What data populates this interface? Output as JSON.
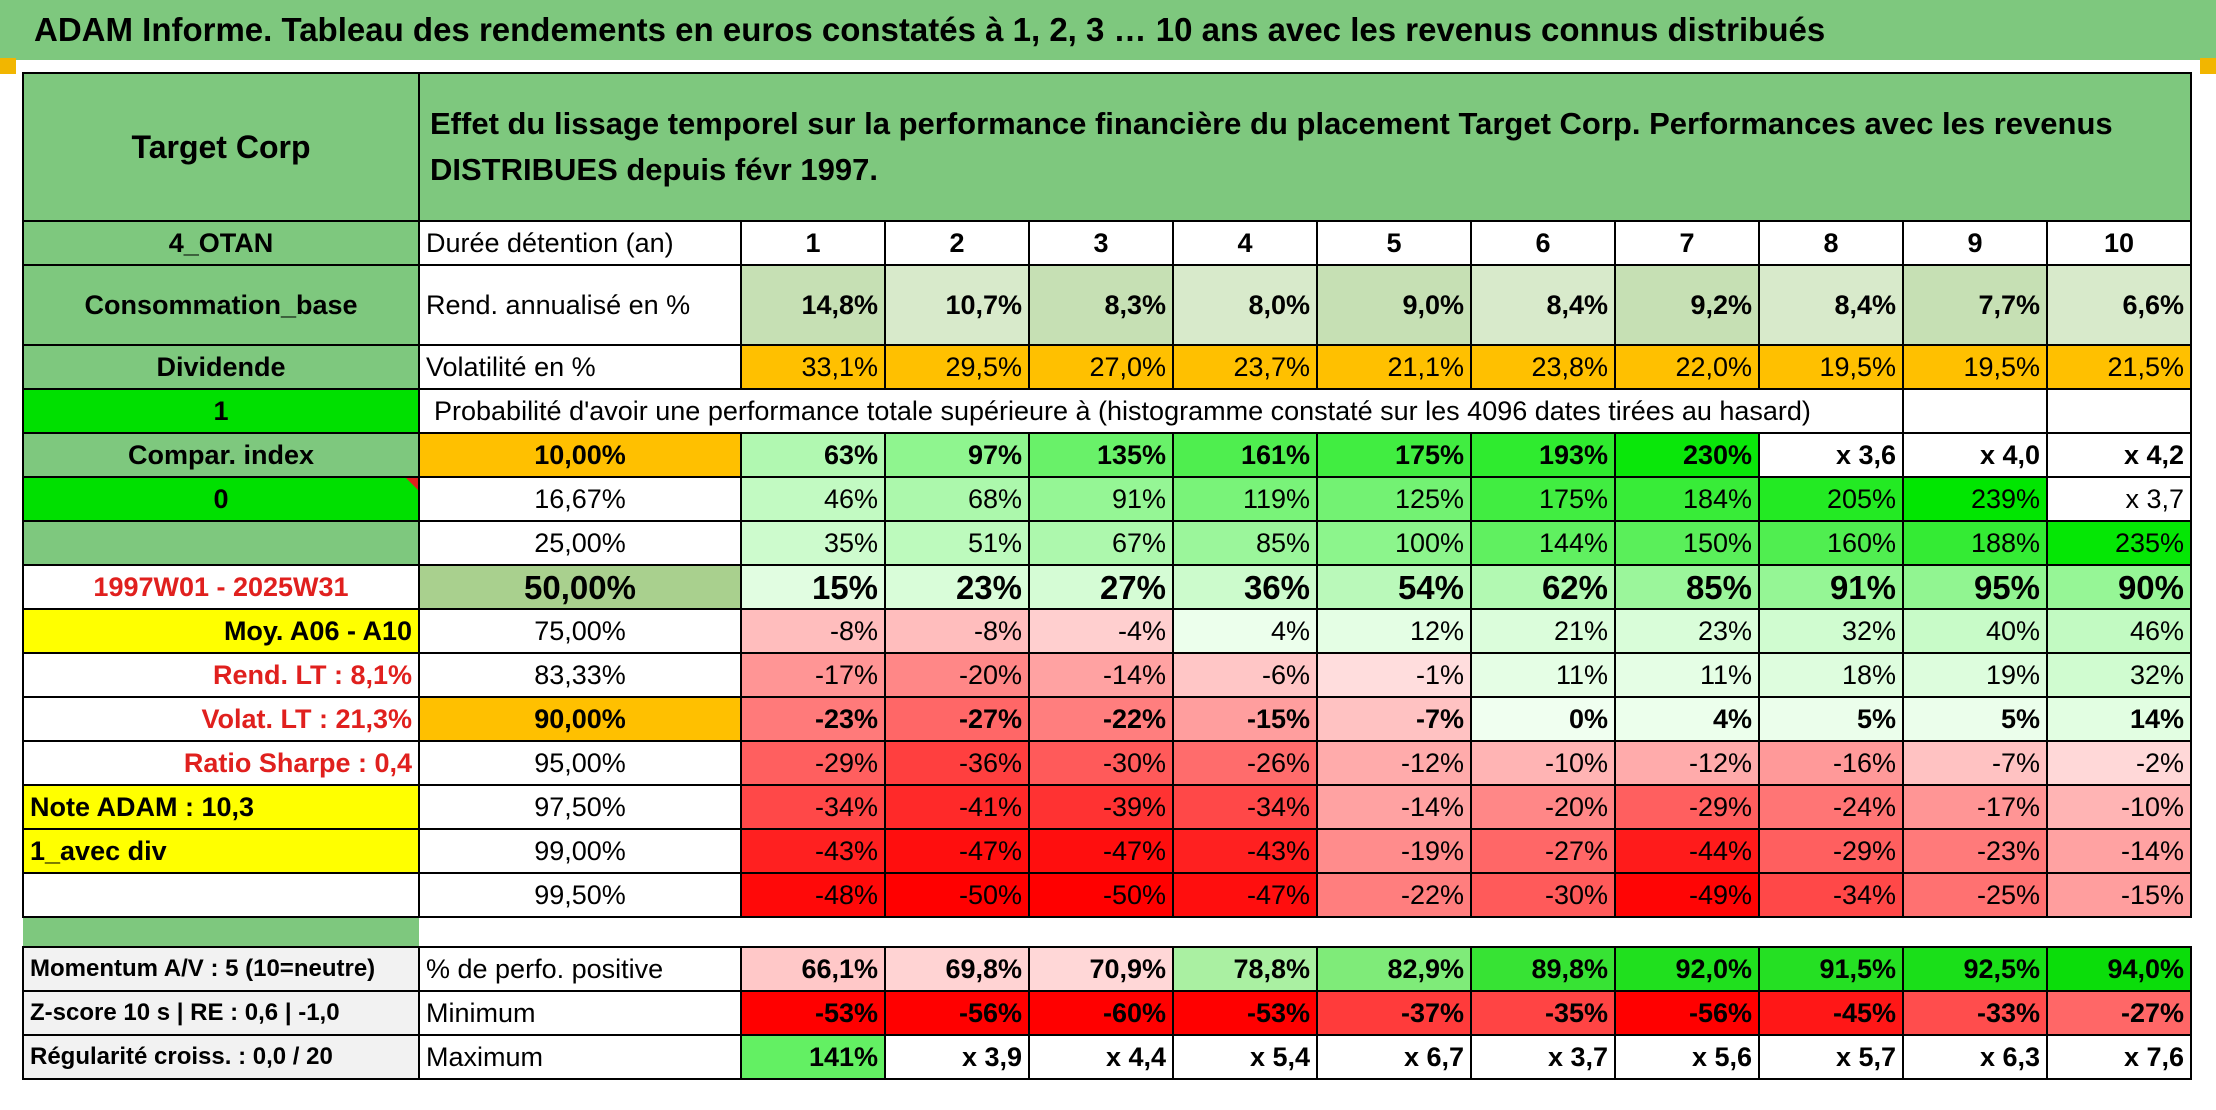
{
  "title": "ADAM Informe. Tableau des rendements en euros constatés à 1, 2, 3 … 10 ans avec les revenus connus distribués",
  "colors": {
    "header_green": "#7ec87e",
    "bright_green": "#00e000",
    "highlight_yellow": "#ffff00",
    "orange": "#ffc000",
    "red_text": "#e0201e"
  },
  "header": {
    "company": "Target Corp",
    "description": "Effet du lissage temporel sur la performance financière du placement Target Corp. Performances avec les revenus DISTRIBUES depuis févr 1997."
  },
  "side": {
    "code": "4_OTAN",
    "sector": "Consommation_base",
    "dividend": "Dividende",
    "one": "1",
    "compar_index": "Compar. index",
    "zero": "0",
    "period": "1997W01 - 2025W31",
    "moy": "Moy. A06 - A10",
    "rend_lt": "Rend. LT :   8,1%",
    "volat_lt": "Volat. LT :   21,3%",
    "sharpe": "Ratio Sharpe :   0,4",
    "note_adam": "Note ADAM : 10,3",
    "avec_div": "1_avec div"
  },
  "table": {
    "duration_label": "Durée détention (an)",
    "years": [
      "1",
      "2",
      "3",
      "4",
      "5",
      "6",
      "7",
      "8",
      "9",
      "10"
    ],
    "rend_label": "Rend. annualisé en %",
    "rend": [
      "14,8%",
      "10,7%",
      "8,3%",
      "8,0%",
      "9,0%",
      "8,4%",
      "9,2%",
      "8,4%",
      "7,7%",
      "6,6%"
    ],
    "vol_label": "Volatilité en %",
    "vol": [
      "33,1%",
      "29,5%",
      "27,0%",
      "23,7%",
      "21,1%",
      "23,8%",
      "22,0%",
      "19,5%",
      "19,5%",
      "21,5%"
    ],
    "prob_title": "Probabilité d'avoir une performance totale supérieure à (histogramme constaté sur les 4096 dates tirées au hasard)",
    "prob_rows": [
      {
        "label": "10,00%",
        "values": [
          "63%",
          "97%",
          "135%",
          "161%",
          "175%",
          "193%",
          "230%",
          "x 3,6",
          "x 4,0",
          "x 4,2"
        ],
        "bold": true,
        "label_class": "orange"
      },
      {
        "label": "16,67%",
        "values": [
          "46%",
          "68%",
          "91%",
          "119%",
          "125%",
          "175%",
          "184%",
          "205%",
          "239%",
          "x 3,7"
        ]
      },
      {
        "label": "25,00%",
        "values": [
          "35%",
          "51%",
          "67%",
          "85%",
          "100%",
          "144%",
          "150%",
          "160%",
          "188%",
          "235%"
        ]
      },
      {
        "label": "50,00%",
        "values": [
          "15%",
          "23%",
          "27%",
          "36%",
          "54%",
          "62%",
          "85%",
          "91%",
          "95%",
          "90%"
        ],
        "big": true,
        "label_class": "lgreen"
      },
      {
        "label": "75,00%",
        "values": [
          "-8%",
          "-8%",
          "-4%",
          "4%",
          "12%",
          "21%",
          "23%",
          "32%",
          "40%",
          "46%"
        ]
      },
      {
        "label": "83,33%",
        "values": [
          "-17%",
          "-20%",
          "-14%",
          "-6%",
          "-1%",
          "11%",
          "11%",
          "18%",
          "19%",
          "32%"
        ]
      },
      {
        "label": "90,00%",
        "values": [
          "-23%",
          "-27%",
          "-22%",
          "-15%",
          "-7%",
          "0%",
          "4%",
          "5%",
          "5%",
          "14%"
        ],
        "bold": true,
        "label_class": "orange"
      },
      {
        "label": "95,00%",
        "values": [
          "-29%",
          "-36%",
          "-30%",
          "-26%",
          "-12%",
          "-10%",
          "-12%",
          "-16%",
          "-7%",
          "-2%"
        ]
      },
      {
        "label": "97,50%",
        "values": [
          "-34%",
          "-41%",
          "-39%",
          "-34%",
          "-14%",
          "-20%",
          "-29%",
          "-24%",
          "-17%",
          "-10%"
        ]
      },
      {
        "label": "99,00%",
        "values": [
          "-43%",
          "-47%",
          "-47%",
          "-43%",
          "-19%",
          "-27%",
          "-44%",
          "-29%",
          "-23%",
          "-14%"
        ]
      },
      {
        "label": "99,50%",
        "values": [
          "-48%",
          "-50%",
          "-50%",
          "-47%",
          "-22%",
          "-30%",
          "-49%",
          "-34%",
          "-25%",
          "-15%"
        ]
      }
    ],
    "bottom_rows": [
      {
        "side": "Momentum A/V : 5 (10=neutre)",
        "label": "% de perfo. positive",
        "values": [
          "66,1%",
          "69,8%",
          "70,9%",
          "78,8%",
          "82,9%",
          "89,8%",
          "92,0%",
          "91,5%",
          "92,5%",
          "94,0%"
        ]
      },
      {
        "side": "Z-score 10 s | RE : 0,6 | -1,0",
        "label": "Minimum",
        "values": [
          "-53%",
          "-56%",
          "-60%",
          "-53%",
          "-37%",
          "-35%",
          "-56%",
          "-45%",
          "-33%",
          "-27%"
        ]
      },
      {
        "side": "Régularité croiss. : 0,0 / 20",
        "label": "Maximum",
        "values": [
          "141%",
          "x 3,9",
          "x 4,4",
          "x 5,4",
          "x 6,7",
          "x 3,7",
          "x 5,6",
          "x 5,7",
          "x 6,3",
          "x 7,6"
        ]
      }
    ]
  }
}
